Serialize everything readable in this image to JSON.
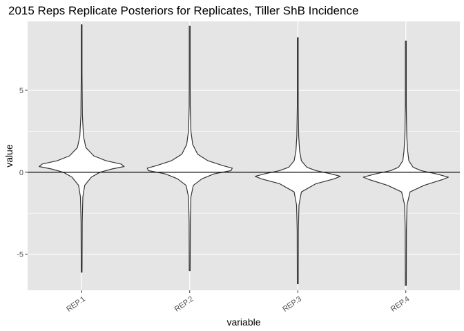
{
  "chart_data": {
    "type": "violin",
    "title": "2015 Reps Replicate Posteriors for Replicates, Tiller ShB Incidence",
    "xlabel": "variable",
    "ylabel": "value",
    "categories": [
      "REP.1",
      "REP.2",
      "REP.3",
      "REP.4"
    ],
    "ylim": [
      -7.2,
      9.2
    ],
    "yticks": [
      -5,
      0,
      5
    ],
    "ytick_labels": [
      "-5",
      "0",
      "5"
    ],
    "hline": 0,
    "grid": true,
    "violins": [
      {
        "category": "REP.1",
        "min": -6.1,
        "max": 9.0,
        "mode": 0.4,
        "profile": [
          [
            -6.1,
            0.0
          ],
          [
            -3,
            0.01
          ],
          [
            -1.5,
            0.02
          ],
          [
            -0.8,
            0.05
          ],
          [
            -0.3,
            0.16
          ],
          [
            0,
            0.3
          ],
          [
            0.2,
            0.5
          ],
          [
            0.35,
            0.7
          ],
          [
            0.5,
            0.65
          ],
          [
            0.7,
            0.4
          ],
          [
            1,
            0.2
          ],
          [
            1.5,
            0.07
          ],
          [
            2.2,
            0.03
          ],
          [
            3.5,
            0.012
          ],
          [
            6,
            0.004
          ],
          [
            9.0,
            0.0
          ]
        ]
      },
      {
        "category": "REP.2",
        "min": -6.0,
        "max": 8.9,
        "mode": 0.2,
        "profile": [
          [
            -6.0,
            0.0
          ],
          [
            -3,
            0.01
          ],
          [
            -1.5,
            0.02
          ],
          [
            -0.8,
            0.06
          ],
          [
            -0.4,
            0.2
          ],
          [
            -0.1,
            0.4
          ],
          [
            0.1,
            0.68
          ],
          [
            0.25,
            0.7
          ],
          [
            0.4,
            0.55
          ],
          [
            0.7,
            0.3
          ],
          [
            1.1,
            0.13
          ],
          [
            1.7,
            0.05
          ],
          [
            2.5,
            0.02
          ],
          [
            4,
            0.008
          ],
          [
            6,
            0.004
          ],
          [
            8.9,
            0.0
          ]
        ]
      },
      {
        "category": "REP.3",
        "min": -6.8,
        "max": 8.2,
        "mode": -0.25,
        "profile": [
          [
            -6.8,
            0.0
          ],
          [
            -3.5,
            0.01
          ],
          [
            -2,
            0.02
          ],
          [
            -1.2,
            0.06
          ],
          [
            -0.7,
            0.3
          ],
          [
            -0.4,
            0.6
          ],
          [
            -0.25,
            0.7
          ],
          [
            -0.1,
            0.55
          ],
          [
            0.1,
            0.3
          ],
          [
            0.3,
            0.15
          ],
          [
            0.7,
            0.06
          ],
          [
            1.3,
            0.03
          ],
          [
            2.2,
            0.015
          ],
          [
            4,
            0.007
          ],
          [
            6,
            0.004
          ],
          [
            8.2,
            0.0
          ]
        ]
      },
      {
        "category": "REP.4",
        "min": -6.9,
        "max": 8.0,
        "mode": -0.3,
        "profile": [
          [
            -6.9,
            0.0
          ],
          [
            -3.5,
            0.01
          ],
          [
            -2,
            0.02
          ],
          [
            -1.2,
            0.07
          ],
          [
            -0.8,
            0.3
          ],
          [
            -0.45,
            0.6
          ],
          [
            -0.3,
            0.7
          ],
          [
            -0.1,
            0.5
          ],
          [
            0.1,
            0.25
          ],
          [
            0.3,
            0.12
          ],
          [
            0.7,
            0.05
          ],
          [
            1.3,
            0.03
          ],
          [
            2.2,
            0.015
          ],
          [
            4,
            0.007
          ],
          [
            6,
            0.004
          ],
          [
            8.0,
            0.0
          ]
        ]
      }
    ],
    "colors": {
      "panel": "#e5e5e5",
      "grid": "#ffffff",
      "violin_fill": "#ffffff",
      "violin_stroke": "#333333",
      "hline": "#000000"
    }
  }
}
